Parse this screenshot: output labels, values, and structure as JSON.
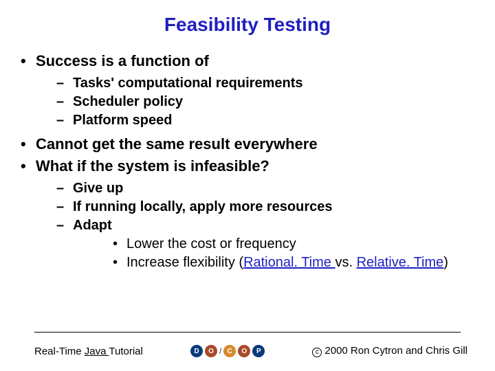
{
  "title": "Feasibility Testing",
  "bullets": {
    "b1": "Success is a function of",
    "b1_1": "Tasks' computational requirements",
    "b1_2": "Scheduler policy",
    "b1_3": "Platform speed",
    "b2": "Cannot get the same result everywhere",
    "b3": "What if the system is infeasible?",
    "b3_1": "Give up",
    "b3_2": "If running locally, apply more resources",
    "b3_3": "Adapt",
    "b3_3_1_pre": "Lower the cost or frequency",
    "b3_3_2_pre": "Increase flexibility (",
    "b3_3_2_link1": "Rational. Time ",
    "b3_3_2_mid": "vs. ",
    "b3_3_2_link2": "Relative. Time",
    "b3_3_2_post": ")"
  },
  "footer": {
    "left_pre": "Real-Time ",
    "left_link": "Java ",
    "left_post": "Tutorial",
    "copyright": "2000 Ron Cytron and Chris Gill",
    "badges": {
      "d": "D",
      "o": "O",
      "c": "C",
      "p": "P"
    }
  }
}
